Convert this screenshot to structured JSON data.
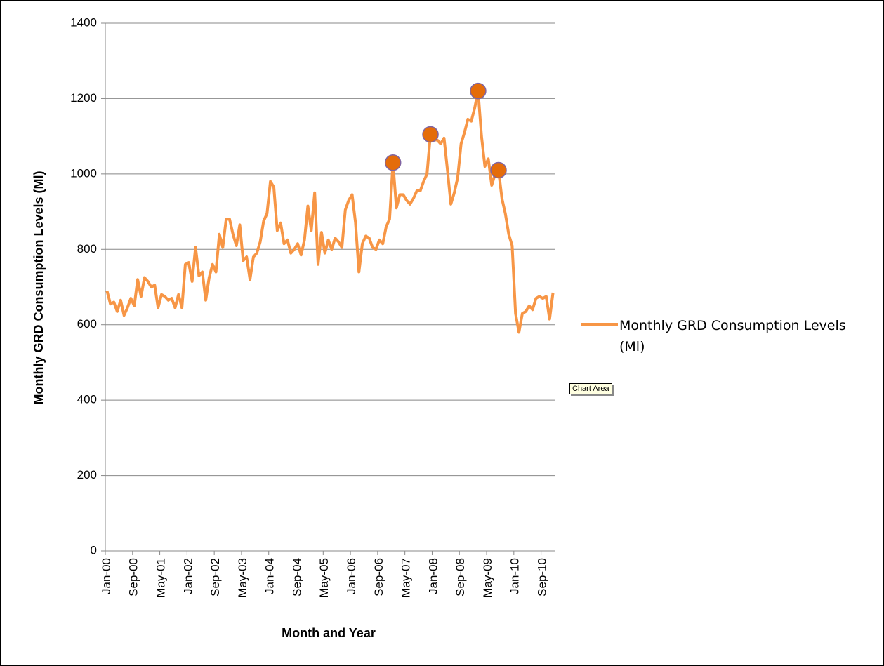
{
  "chart_data": {
    "type": "line",
    "x_label": "Month and Year",
    "y_label": "Monthly GRD Consumption Levels (Ml)",
    "tooltip": "Chart Area",
    "categories": [
      "Jan-00",
      null,
      null,
      null,
      null,
      null,
      null,
      null,
      "Sep-00",
      null,
      null,
      null,
      null,
      null,
      null,
      null,
      "May-01",
      null,
      null,
      null,
      null,
      null,
      null,
      null,
      "Jan-02",
      null,
      null,
      null,
      null,
      null,
      null,
      null,
      "Sep-02",
      null,
      null,
      null,
      null,
      null,
      null,
      null,
      "May-03",
      null,
      null,
      null,
      null,
      null,
      null,
      null,
      "Jan-04",
      null,
      null,
      null,
      null,
      null,
      null,
      null,
      "Sep-04",
      null,
      null,
      null,
      null,
      null,
      null,
      null,
      "May-05",
      null,
      null,
      null,
      null,
      null,
      null,
      null,
      "Jan-06",
      null,
      null,
      null,
      null,
      null,
      null,
      null,
      "Sep-06",
      null,
      null,
      null,
      null,
      null,
      null,
      null,
      "May-07",
      null,
      null,
      null,
      null,
      null,
      null,
      null,
      "Jan-08",
      null,
      null,
      null,
      null,
      null,
      null,
      null,
      "Sep-08",
      null,
      null,
      null,
      null,
      null,
      null,
      null,
      "May-09",
      null,
      null,
      null,
      null,
      null,
      null,
      null,
      "Jan-10",
      null,
      null,
      null,
      null,
      null,
      null,
      null,
      "Sep-10",
      null,
      null,
      null
    ],
    "series": [
      {
        "name": "Monthly GRD Consumption Levels (Ml)",
        "color": "#f79646",
        "values": [
          690,
          655,
          660,
          635,
          665,
          625,
          645,
          670,
          650,
          720,
          675,
          725,
          715,
          700,
          705,
          645,
          680,
          675,
          665,
          670,
          645,
          680,
          645,
          760,
          765,
          715,
          805,
          730,
          740,
          665,
          725,
          760,
          740,
          840,
          805,
          880,
          880,
          840,
          810,
          865,
          770,
          780,
          720,
          780,
          790,
          820,
          875,
          895,
          980,
          965,
          850,
          870,
          815,
          825,
          790,
          800,
          815,
          785,
          825,
          915,
          850,
          950,
          760,
          845,
          790,
          825,
          800,
          830,
          820,
          805,
          905,
          930,
          945,
          870,
          740,
          815,
          835,
          830,
          805,
          800,
          825,
          815,
          860,
          880,
          1030,
          910,
          945,
          945,
          930,
          920,
          935,
          955,
          955,
          980,
          1000,
          1105,
          1090,
          1090,
          1080,
          1095,
          1010,
          920,
          950,
          990,
          1080,
          1110,
          1145,
          1140,
          1175,
          1220,
          1100,
          1020,
          1040,
          970,
          1000,
          1010,
          935,
          895,
          840,
          810,
          630,
          580,
          630,
          635,
          650,
          640,
          670,
          675,
          670,
          675,
          615,
          685
        ]
      }
    ],
    "highlight_indices": [
      84,
      95,
      109,
      115
    ],
    "highlight_color": "#e46c0a",
    "ylim": [
      0,
      1400
    ],
    "yticks": [
      0,
      200,
      400,
      600,
      800,
      1000,
      1200,
      1400
    ],
    "grid": true,
    "legend": "right"
  }
}
